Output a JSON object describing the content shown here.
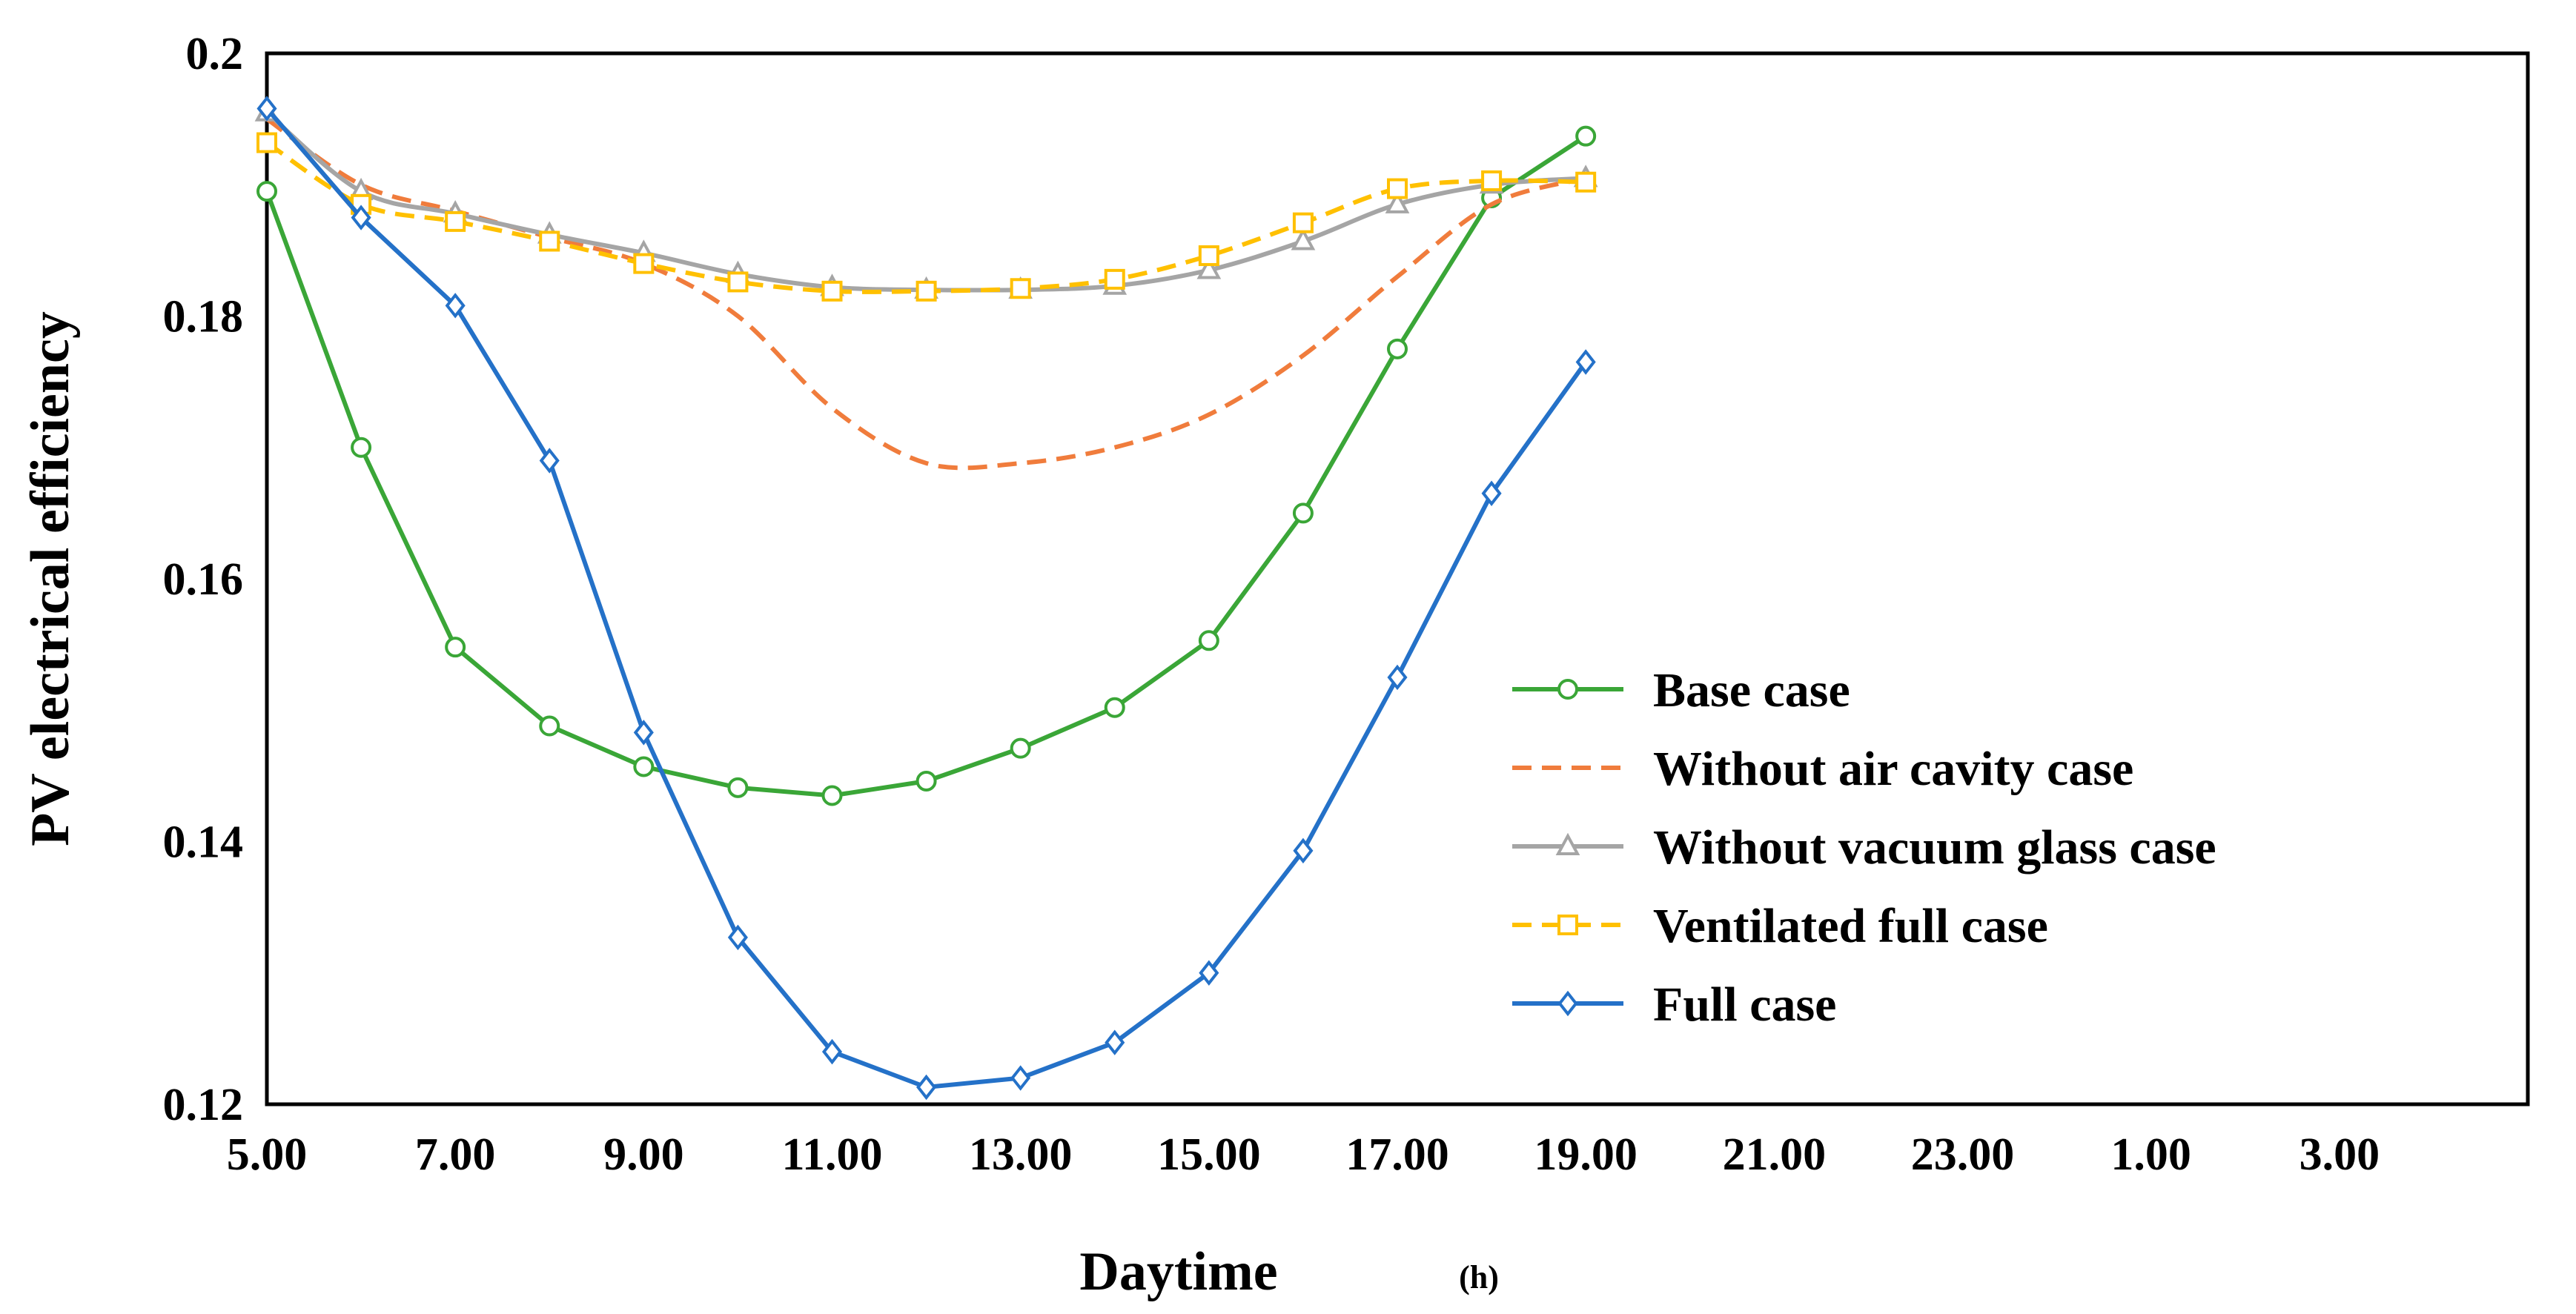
{
  "chart_data": {
    "type": "line",
    "title": "",
    "xlabel": "Daytime",
    "xlabel_unit": "(h)",
    "ylabel": "PV electrical efficiency",
    "x_tick_labels": [
      "5.00",
      "7.00",
      "9.00",
      "11.00",
      "13.00",
      "15.00",
      "17.00",
      "19.00",
      "21.00",
      "23.00",
      "1.00",
      "3.00"
    ],
    "y_tick_labels": [
      "0.12",
      "0.14",
      "0.16",
      "0.18",
      "0.2"
    ],
    "xlim": [
      5,
      29
    ],
    "ylim": [
      0.12,
      0.2
    ],
    "x": [
      5,
      6,
      7,
      8,
      9,
      10,
      11,
      12,
      13,
      14,
      15,
      16,
      17,
      18,
      19
    ],
    "legend_position": "center-right",
    "series": [
      {
        "name": "Base case",
        "color": "#3aa637",
        "marker": "circle",
        "dash": "solid",
        "smooth": false,
        "values": [
          0.1895,
          0.17,
          0.1548,
          0.1488,
          0.1457,
          0.1441,
          0.1435,
          0.1446,
          0.1471,
          0.1502,
          0.1553,
          0.165,
          0.1775,
          0.189,
          0.1937
        ]
      },
      {
        "name": "Without air cavity case",
        "color": "#f07c3c",
        "marker": "none",
        "dash": "dashed",
        "smooth": true,
        "values": [
          0.195,
          0.19,
          0.188,
          0.186,
          0.184,
          0.18,
          0.173,
          0.1688,
          0.1688,
          0.17,
          0.1725,
          0.177,
          0.183,
          0.1885,
          0.1905
        ]
      },
      {
        "name": "Without vacuum glass case",
        "color": "#a5a5a5",
        "marker": "triangle",
        "dash": "solid",
        "smooth": true,
        "values": [
          0.1955,
          0.1895,
          0.1878,
          0.1862,
          0.1848,
          0.1832,
          0.1822,
          0.182,
          0.182,
          0.1823,
          0.1835,
          0.1857,
          0.1885,
          0.19,
          0.1905
        ]
      },
      {
        "name": "Ventilated full case",
        "color": "#ffc000",
        "marker": "square",
        "dash": "dashed",
        "smooth": true,
        "values": [
          0.1932,
          0.1885,
          0.1872,
          0.1857,
          0.184,
          0.1826,
          0.1819,
          0.1819,
          0.1821,
          0.1828,
          0.1846,
          0.1871,
          0.1897,
          0.1903,
          0.1902
        ]
      },
      {
        "name": "Full case",
        "color": "#2471c8",
        "marker": "diamond",
        "dash": "solid",
        "smooth": false,
        "values": [
          0.1958,
          0.1875,
          0.1808,
          0.169,
          0.1483,
          0.1327,
          0.124,
          0.1213,
          0.122,
          0.1247,
          0.13,
          0.1393,
          0.1525,
          0.1665,
          0.1765
        ]
      }
    ]
  }
}
